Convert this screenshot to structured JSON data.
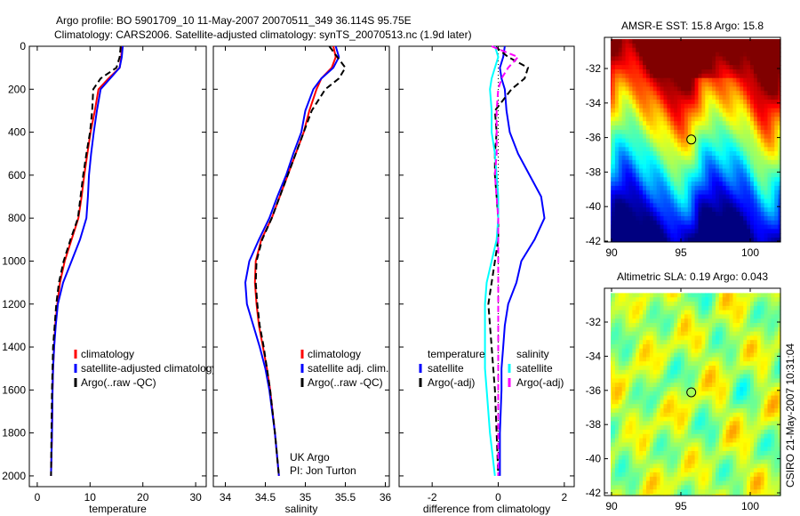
{
  "title": {
    "line1": "Argo profile: BO 5901709_10 11-May-2007 20070511_349 36.114S 95.75E",
    "line2": "Climatology: CARS2006. Satellite-adjusted climatology: synTS_20070513.nc (1.9d later)"
  },
  "side_stamp": "CSIRO 21-May-2007 10:31:04",
  "chart_data": [
    {
      "type": "line",
      "id": "temperature",
      "xlabel": "temperature",
      "ylabel": "",
      "xlim": [
        -1.5,
        32
      ],
      "ylim": [
        2050,
        0
      ],
      "xticks": [
        "0",
        "10",
        "20",
        "30"
      ],
      "xtick_values": [
        0,
        10,
        20,
        30
      ],
      "yticks": [
        "0",
        "200",
        "400",
        "600",
        "800",
        "1000",
        "1200",
        "1400",
        "1600",
        "1800",
        "2000"
      ],
      "ytick_values": [
        0,
        200,
        400,
        600,
        800,
        1000,
        1200,
        1400,
        1600,
        1800,
        2000
      ],
      "legend": [
        "climatology",
        "satellite-adjusted climatology",
        "Argo(..raw -QC)"
      ],
      "depth": [
        0,
        50,
        100,
        150,
        200,
        300,
        400,
        500,
        600,
        700,
        800,
        900,
        1000,
        1100,
        1200,
        1300,
        1400,
        1500,
        1600,
        1800,
        2000
      ],
      "series": [
        {
          "name": "climatology",
          "color": "#ff0000",
          "values": [
            16.0,
            15.9,
            15.6,
            13.5,
            11.6,
            10.9,
            10.1,
            9.5,
            8.9,
            8.4,
            7.8,
            6.5,
            5.2,
            4.3,
            3.8,
            3.4,
            3.2,
            3.0,
            2.9,
            2.8,
            2.6
          ]
        },
        {
          "name": "satellite-adjusted climatology",
          "color": "#0000ff",
          "values": [
            16.2,
            16.0,
            15.6,
            13.8,
            12.0,
            11.3,
            10.7,
            10.2,
            9.8,
            9.6,
            9.3,
            8.1,
            6.5,
            4.9,
            3.9,
            3.5,
            3.2,
            3.0,
            2.9,
            2.8,
            2.6
          ]
        },
        {
          "name": "Argo(..raw -QC)",
          "color": "#000000",
          "dashed": true,
          "values": [
            15.8,
            15.6,
            15.0,
            12.0,
            10.6,
            10.4,
            10.0,
            9.3,
            8.7,
            8.2,
            7.7,
            6.3,
            5.0,
            4.1,
            3.6,
            3.3,
            3.0,
            2.9,
            2.8,
            2.7,
            2.6
          ]
        }
      ]
    },
    {
      "type": "line",
      "id": "salinity",
      "xlabel": "salinity",
      "xlim": [
        33.85,
        36.05
      ],
      "ylim": [
        2050,
        0
      ],
      "xticks": [
        "34",
        "34.5",
        "35",
        "35.5",
        "36"
      ],
      "xtick_values": [
        34,
        34.5,
        35,
        35.5,
        36
      ],
      "legend": [
        "climatology",
        "satellite adj. clim.",
        "Argo(..raw -QC)"
      ],
      "annotation": [
        "UK Argo",
        "PI: Jon Turton"
      ],
      "depth": [
        0,
        50,
        100,
        150,
        200,
        300,
        400,
        500,
        600,
        700,
        800,
        900,
        1000,
        1100,
        1200,
        1300,
        1400,
        1500,
        1600,
        1800,
        2000
      ],
      "series": [
        {
          "name": "climatology",
          "color": "#ff0000",
          "values": [
            35.35,
            35.38,
            35.33,
            35.2,
            35.14,
            35.05,
            34.98,
            34.88,
            34.78,
            34.68,
            34.58,
            34.45,
            34.38,
            34.37,
            34.39,
            34.42,
            34.47,
            34.52,
            34.56,
            34.62,
            34.67
          ]
        },
        {
          "name": "satellite adj. clim.",
          "color": "#0000ff",
          "values": [
            35.38,
            35.42,
            35.35,
            35.2,
            35.1,
            35.0,
            34.95,
            34.85,
            34.76,
            34.65,
            34.55,
            34.42,
            34.3,
            34.25,
            34.27,
            34.35,
            34.43,
            34.5,
            34.55,
            34.62,
            34.67
          ]
        },
        {
          "name": "Argo(..raw -QC)",
          "color": "#000000",
          "dashed": true,
          "values": [
            35.3,
            35.4,
            35.5,
            35.42,
            35.25,
            35.08,
            34.98,
            34.88,
            34.78,
            34.68,
            34.58,
            34.46,
            34.39,
            34.38,
            34.4,
            34.43,
            34.48,
            34.52,
            34.56,
            34.62,
            34.67
          ]
        }
      ]
    },
    {
      "type": "line",
      "id": "difference",
      "xlabel": "difference from climatology",
      "xlim": [
        -3,
        2.3
      ],
      "ylim": [
        2050,
        0
      ],
      "xticks": [
        "-2",
        "0",
        "2"
      ],
      "xtick_values": [
        -2,
        0,
        2
      ],
      "legend_headers": [
        "temperature",
        "salinity"
      ],
      "legend": [
        "satellite",
        "Argo(-adj)",
        "satellite",
        "Argo(-adj)"
      ],
      "depth": [
        0,
        50,
        100,
        150,
        200,
        300,
        400,
        500,
        600,
        700,
        800,
        900,
        1000,
        1100,
        1200,
        1300,
        1400,
        1500,
        1600,
        1800,
        2000
      ],
      "series": [
        {
          "name": "temperature satellite",
          "color": "#0000ff",
          "values": [
            0.2,
            0.15,
            0.05,
            0.1,
            0.2,
            0.25,
            0.35,
            0.6,
            0.95,
            1.3,
            1.4,
            1.1,
            0.7,
            0.55,
            0.3,
            0.2,
            0.15,
            0.1,
            0.1,
            0.05,
            0.05
          ]
        },
        {
          "name": "temperature Argo(-adj)",
          "color": "#000000",
          "dashed": true,
          "values": [
            -0.1,
            0.3,
            0.9,
            0.8,
            0.4,
            -0.1,
            -0.05,
            -0.1,
            -0.1,
            -0.05,
            0.0,
            0.0,
            -0.1,
            -0.2,
            -0.3,
            -0.25,
            -0.2,
            -0.15,
            -0.1,
            -0.05,
            0.0
          ]
        },
        {
          "name": "salinity satellite",
          "color": "#00ffff",
          "values": [
            -0.1,
            0.0,
            -0.1,
            -0.2,
            -0.25,
            -0.2,
            -0.2,
            -0.1,
            -0.05,
            0.0,
            0.0,
            -0.05,
            -0.2,
            -0.35,
            -0.4,
            -0.4,
            -0.4,
            -0.4,
            -0.35,
            -0.25,
            -0.1
          ]
        },
        {
          "name": "salinity Argo(-adj)",
          "color": "#ff00ff",
          "dashed": true,
          "values": [
            -0.2,
            0.6,
            0.3,
            0.1,
            0.0,
            -0.05,
            -0.05,
            -0.05,
            -0.1,
            -0.05,
            0.0,
            0.0,
            0.0,
            0.0,
            0.0,
            0.0,
            0.0,
            0.0,
            0.0,
            0.0,
            0.0
          ]
        }
      ]
    },
    {
      "type": "heatmap",
      "id": "sst-map",
      "title": "AMSR-E SST: 15.8 Argo: 15.8",
      "xlim": [
        89.5,
        102.3
      ],
      "ylim": [
        -42.05,
        -30.3
      ],
      "xticks": [
        "90",
        "95",
        "100"
      ],
      "xtick_values": [
        90,
        95,
        100
      ],
      "yticks": [
        "-32",
        "-34",
        "-36",
        "-38",
        "-40",
        "-42"
      ],
      "ytick_values": [
        -32,
        -34,
        -36,
        -38,
        -40,
        -42
      ],
      "colormap": "jet",
      "clim": [
        10.5,
        19.5
      ],
      "marker": {
        "lon": 95.75,
        "lat": -36.114,
        "value": 15.8
      }
    },
    {
      "type": "heatmap",
      "id": "sla-map",
      "title": "Altimetric SLA: 0.19 Argo: 0.043",
      "xlim": [
        89.5,
        102.3
      ],
      "ylim": [
        -42.1,
        -30.3
      ],
      "xticks": [
        "90",
        "95",
        "100"
      ],
      "xtick_values": [
        90,
        95,
        100
      ],
      "yticks": [
        "-32",
        "-34",
        "-36",
        "-38",
        "-40",
        "-42"
      ],
      "ytick_values": [
        -32,
        -34,
        -36,
        -38,
        -40,
        -42
      ],
      "colormap": "jet",
      "clim": [
        -0.6,
        0.6
      ],
      "marker": {
        "lon": 95.75,
        "lat": -36.114,
        "value": 0.043
      }
    }
  ]
}
